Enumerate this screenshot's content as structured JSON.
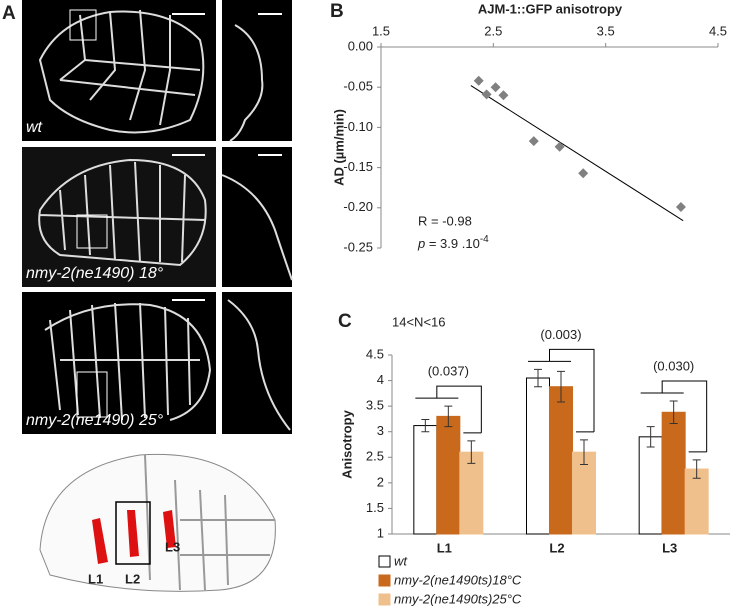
{
  "panel_a": {
    "label": "A",
    "images": [
      {
        "label": "wt"
      },
      {
        "label": "nmy-2(ne1490) 18°"
      },
      {
        "label": "nmy-2(ne1490) 25°"
      }
    ],
    "regions": [
      "L1",
      "L2",
      "L3"
    ]
  },
  "chart_data": [
    {
      "type": "scatter",
      "panel": "B",
      "title": "AJM-1::GFP anisotropy",
      "y_label": "AD (µm/min)",
      "x": [
        2.37,
        2.44,
        2.52,
        2.59,
        2.86,
        3.09,
        3.3,
        4.17
      ],
      "values": [
        -0.042,
        -0.059,
        -0.05,
        -0.06,
        -0.117,
        -0.124,
        -0.157,
        -0.199
      ],
      "color": "#808080",
      "trendline": {
        "x": [
          2.3,
          4.19
        ],
        "values": [
          -0.048,
          -0.216
        ]
      },
      "xlim": [
        1.5,
        4.5
      ],
      "xticks": [
        1.5,
        2.5,
        3.5,
        4.5
      ],
      "ylim": [
        -0.25,
        0
      ],
      "yticks": [
        {
          "value": 0,
          "label": "0.00"
        },
        -0.05,
        {
          "value": -0.1,
          "label": "-0.10"
        },
        -0.15,
        {
          "value": -0.2,
          "label": "-0.20"
        },
        -0.25
      ],
      "annotations": {
        "r": "R = -0.98",
        "p_symbol": "p",
        "p_text": " = 3.9 .10",
        "p_exponent": "-4"
      }
    },
    {
      "type": "bar",
      "panel": "C",
      "subtitle": "14<N<16",
      "y_label": "Anisotropy",
      "categories": [
        "L1",
        "L2",
        "L3"
      ],
      "series": [
        {
          "name": "wt",
          "color": "#ffffff",
          "values": [
            3.12,
            4.05,
            2.9
          ],
          "errors": [
            0.12,
            0.17,
            0.2
          ]
        },
        {
          "name": "nmy-2(ne1490ts)18°C",
          "color": "#c8691c",
          "values": [
            3.3,
            3.88,
            3.38
          ],
          "errors": [
            0.2,
            0.3,
            0.22
          ]
        },
        {
          "name": "nmy-2(ne1490ts)25°C",
          "color": "#f0c08c",
          "values": [
            2.6,
            2.6,
            2.27
          ],
          "errors": [
            0.22,
            0.24,
            0.18
          ]
        }
      ],
      "significance": [
        "(0.037)",
        "(0.003)",
        "(0.030)"
      ],
      "ylim": [
        1,
        4.5
      ],
      "yticks": [
        1,
        1.5,
        2,
        2.5,
        3,
        3.5,
        4,
        4.5
      ]
    }
  ]
}
